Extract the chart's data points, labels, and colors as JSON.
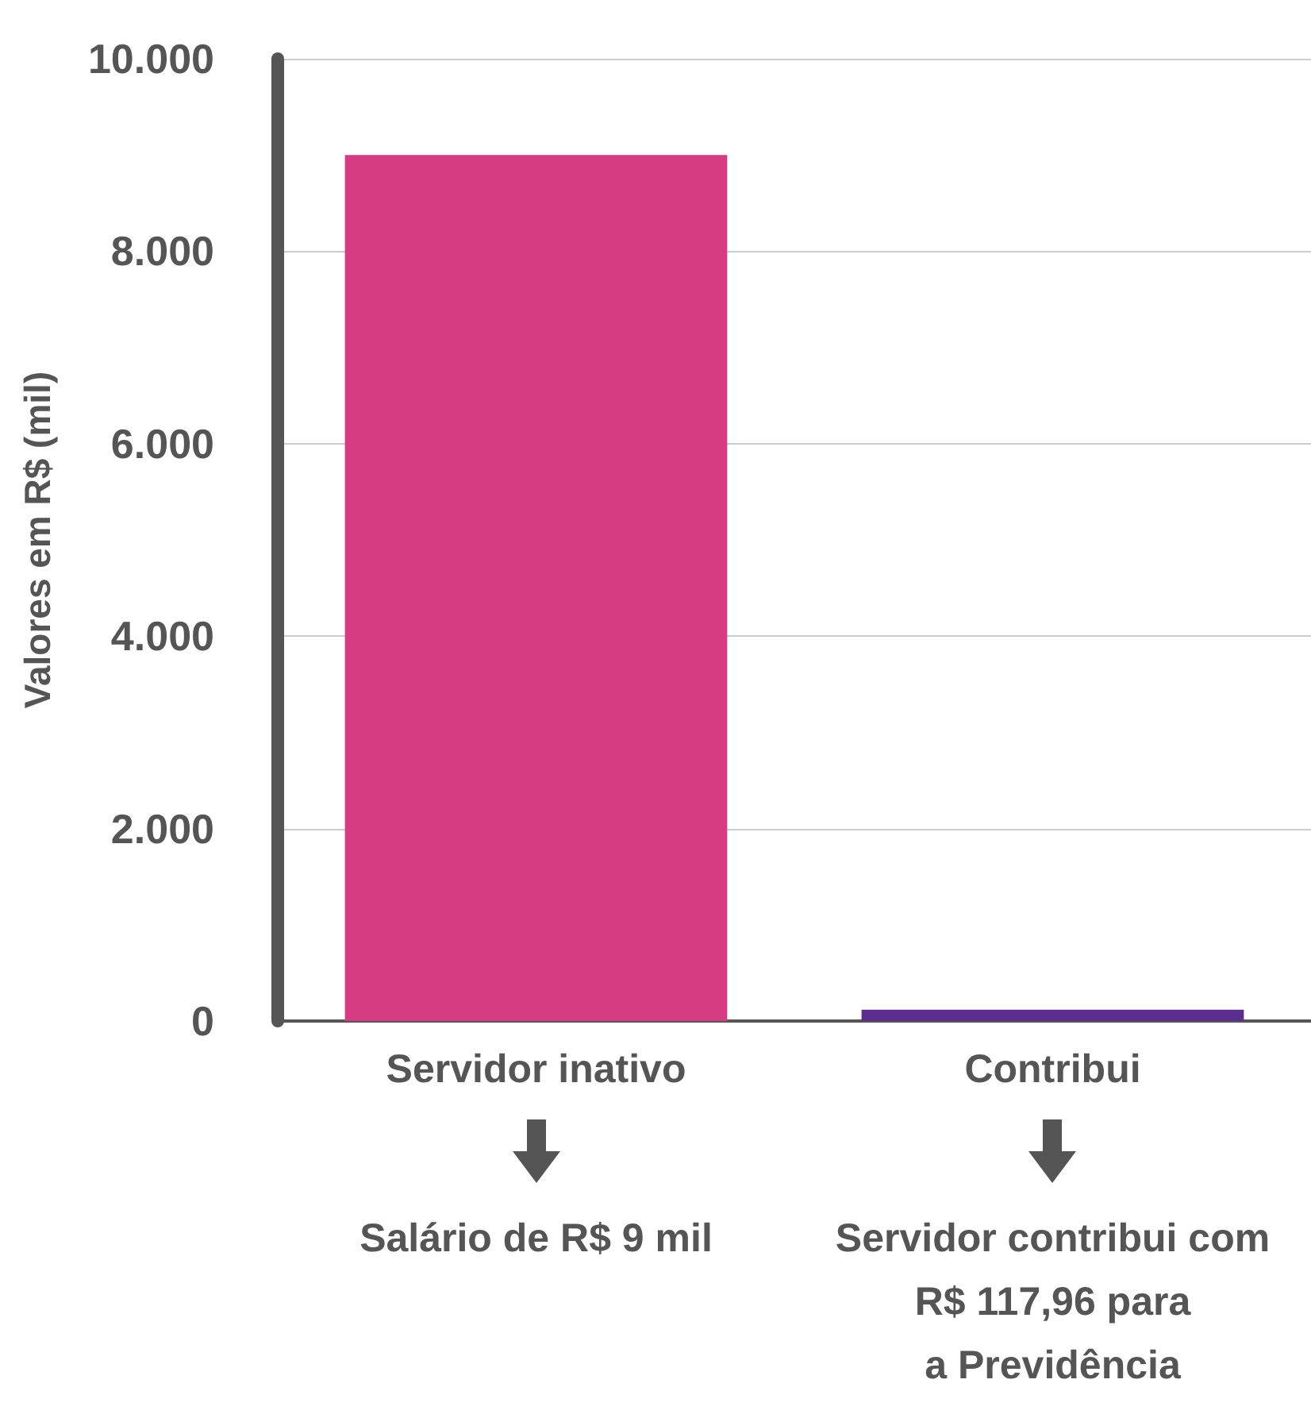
{
  "chart_data": {
    "type": "bar",
    "ylabel": "Valores em R$ (mil)",
    "categories": [
      "Servidor inativo",
      "Contribui"
    ],
    "values": [
      9000,
      117.96
    ],
    "colors": [
      "#d63c82",
      "#5b2d8e"
    ],
    "ylim": [
      0,
      10000
    ],
    "yticks": [
      {
        "value": 0,
        "label": "0"
      },
      {
        "value": 2000,
        "label": "2.000"
      },
      {
        "value": 4000,
        "label": "4.000"
      },
      {
        "value": 6000,
        "label": "6.000"
      },
      {
        "value": 8000,
        "label": "8.000"
      },
      {
        "value": 10000,
        "label": "10.000"
      }
    ],
    "grid": "y",
    "annotations": [
      "Salário de R$ 9 mil",
      "Servidor contribui com\nR$ 117,96 para\na Previdência"
    ]
  }
}
